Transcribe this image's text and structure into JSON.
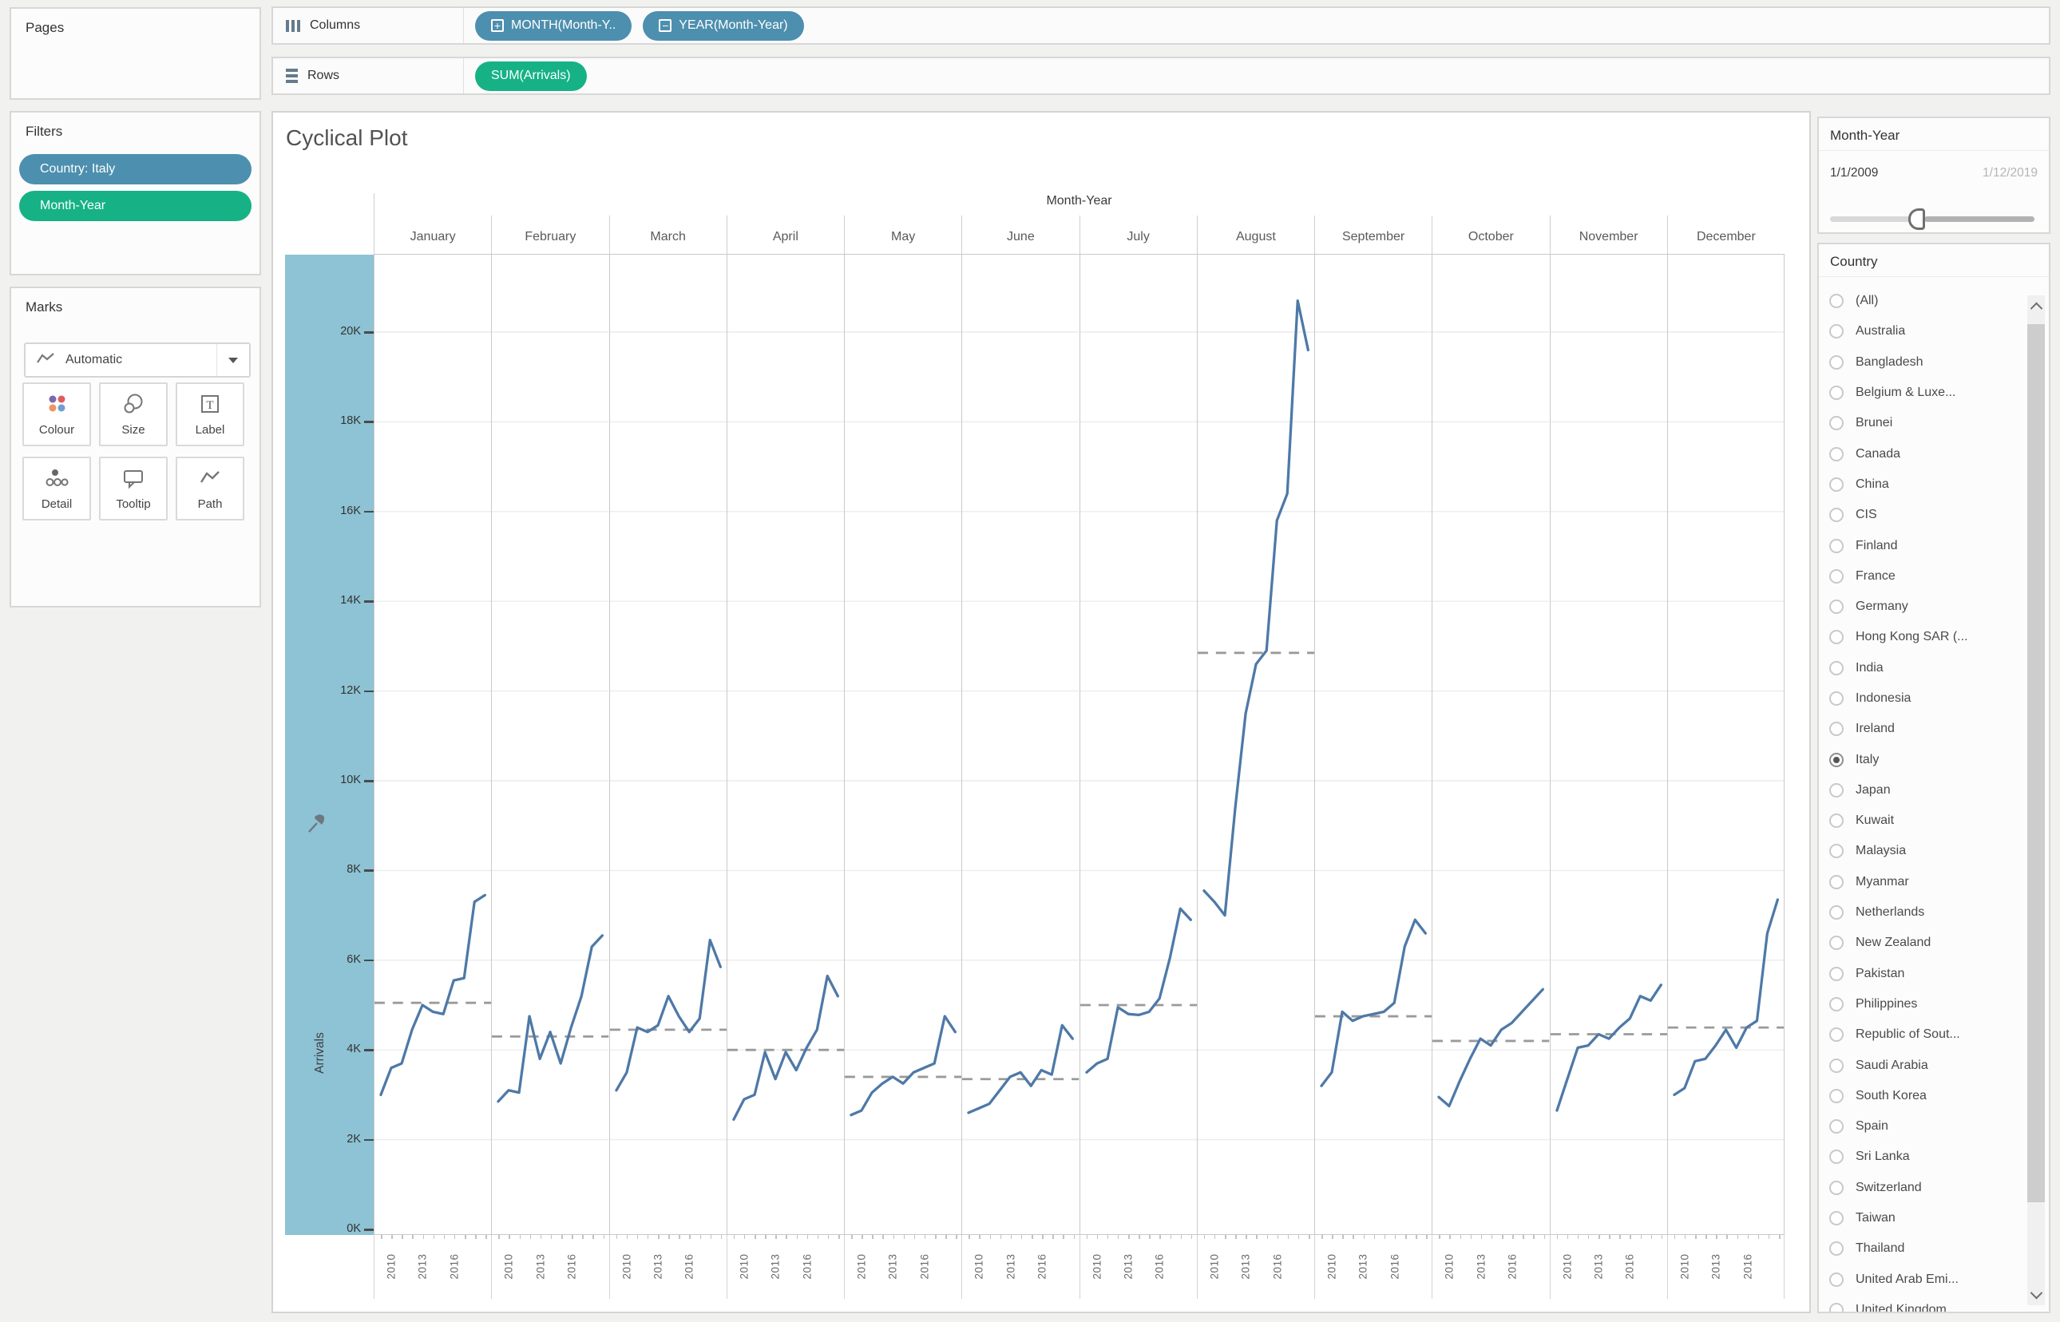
{
  "shelves": {
    "columns_label": "Columns",
    "rows_label": "Rows",
    "columns_pills": [
      {
        "label": "MONTH(Month-Y..",
        "icon": "+"
      },
      {
        "label": "YEAR(Month-Year)",
        "icon": "−"
      }
    ],
    "rows_pills": [
      {
        "label": "SUM(Arrivals)"
      }
    ]
  },
  "sidebar": {
    "pages_label": "Pages",
    "filters_label": "Filters",
    "filter_pills": [
      {
        "label": "Country: Italy",
        "color": "#4d8fae"
      },
      {
        "label": "Month-Year",
        "color": "#16b286"
      }
    ],
    "marks": {
      "label": "Marks",
      "mark_type": "Automatic",
      "buttons": [
        "Colour",
        "Size",
        "Label",
        "Detail",
        "Tooltip",
        "Path"
      ]
    }
  },
  "chart": {
    "title": "Cyclical Plot",
    "top_axis_label": "Month-Year",
    "y_axis_label": "Arrivals",
    "y_ticks": [
      {
        "label": "0K",
        "value": 0
      },
      {
        "label": "2K",
        "value": 2000
      },
      {
        "label": "4K",
        "value": 4000
      },
      {
        "label": "6K",
        "value": 6000
      },
      {
        "label": "8K",
        "value": 8000
      },
      {
        "label": "10K",
        "value": 10000
      },
      {
        "label": "12K",
        "value": 12000
      },
      {
        "label": "14K",
        "value": 14000
      },
      {
        "label": "16K",
        "value": 16000
      },
      {
        "label": "18K",
        "value": 18000
      },
      {
        "label": "20K",
        "value": 20000
      }
    ],
    "year_tick_labels": [
      "2010",
      "2013",
      "2016"
    ]
  },
  "chart_data": {
    "type": "line",
    "title": "Cyclical Plot",
    "xlabel": "Month-Year",
    "ylabel": "Arrivals",
    "ylim": [
      0,
      21800
    ],
    "x_years": [
      2009,
      2010,
      2011,
      2012,
      2013,
      2014,
      2015,
      2016,
      2017,
      2018,
      2019
    ],
    "grid": true,
    "reference_line": "dashed average per month panel",
    "panels": [
      {
        "month": "January",
        "values": [
          3000,
          3600,
          3700,
          4450,
          5000,
          4850,
          4800,
          5550,
          5600,
          7300,
          7450
        ],
        "avg": 5050
      },
      {
        "month": "February",
        "values": [
          2850,
          3100,
          3050,
          4750,
          3800,
          4400,
          3700,
          4500,
          5200,
          6300,
          6550
        ],
        "avg": 4300
      },
      {
        "month": "March",
        "values": [
          3100,
          3500,
          4500,
          4400,
          4550,
          5200,
          4750,
          4400,
          4700,
          6450,
          5850
        ],
        "avg": 4450
      },
      {
        "month": "April",
        "values": [
          2450,
          2900,
          3000,
          3950,
          3350,
          3950,
          3550,
          4050,
          4450,
          5650,
          5200
        ],
        "avg": 4000
      },
      {
        "month": "May",
        "values": [
          2550,
          2650,
          3050,
          3250,
          3400,
          3250,
          3500,
          3600,
          3700,
          4750,
          4400
        ],
        "avg": 3400
      },
      {
        "month": "June",
        "values": [
          2600,
          2700,
          2800,
          3100,
          3400,
          3500,
          3200,
          3550,
          3450,
          4550,
          4250
        ],
        "avg": 3350
      },
      {
        "month": "July",
        "values": [
          3500,
          3700,
          3800,
          4950,
          4800,
          4780,
          4850,
          5150,
          6050,
          7150,
          6900
        ],
        "avg": 5000
      },
      {
        "month": "August",
        "values": [
          7550,
          7300,
          7000,
          9400,
          11500,
          12600,
          12900,
          15800,
          16400,
          20700,
          19600
        ],
        "avg": 12850
      },
      {
        "month": "September",
        "values": [
          3200,
          3500,
          4850,
          4650,
          4750,
          4800,
          4850,
          5050,
          6300,
          6900,
          6600
        ],
        "avg": 4750
      },
      {
        "month": "October",
        "values": [
          2950,
          2750,
          3300,
          3800,
          4250,
          4100,
          4450,
          4600,
          4850,
          5100,
          5350
        ],
        "avg": 4200
      },
      {
        "month": "November",
        "values": [
          2650,
          3350,
          4050,
          4100,
          4350,
          4250,
          4500,
          4700,
          5200,
          5100,
          5450
        ],
        "avg": 4350
      },
      {
        "month": "December",
        "values": [
          3000,
          3150,
          3750,
          3800,
          4100,
          4450,
          4050,
          4500,
          4650,
          6600,
          7350
        ],
        "avg": 4500
      }
    ]
  },
  "right_panel": {
    "month_year_card": {
      "title": "Month-Year",
      "min": "1/1/2009",
      "max": "1/12/2019",
      "slider_position": 0.42
    },
    "country_card": {
      "title": "Country",
      "selected": "Italy",
      "options": [
        "(All)",
        "Australia",
        "Bangladesh",
        "Belgium & Luxe...",
        "Brunei",
        "Canada",
        "China",
        "CIS",
        "Finland",
        "France",
        "Germany",
        "Hong Kong SAR (...",
        "India",
        "Indonesia",
        "Ireland",
        "Italy",
        "Japan",
        "Kuwait",
        "Malaysia",
        "Myanmar",
        "Netherlands",
        "New Zealand",
        "Pakistan",
        "Philippines",
        "Republic of Sout...",
        "Saudi Arabia",
        "South Korea",
        "Spain",
        "Sri Lanka",
        "Switzerland",
        "Taiwan",
        "Thailand",
        "United Arab Emi...",
        "United Kingdom"
      ]
    }
  },
  "colors": {
    "pill_blue": "#4d8fae",
    "pill_green": "#16b286",
    "line_blue": "#4e79a7",
    "reference_gray": "#9a9a9a",
    "axis_highlight": "#8dc3d4",
    "gridline": "#ececec",
    "panel_border": "#c9c9c9"
  }
}
